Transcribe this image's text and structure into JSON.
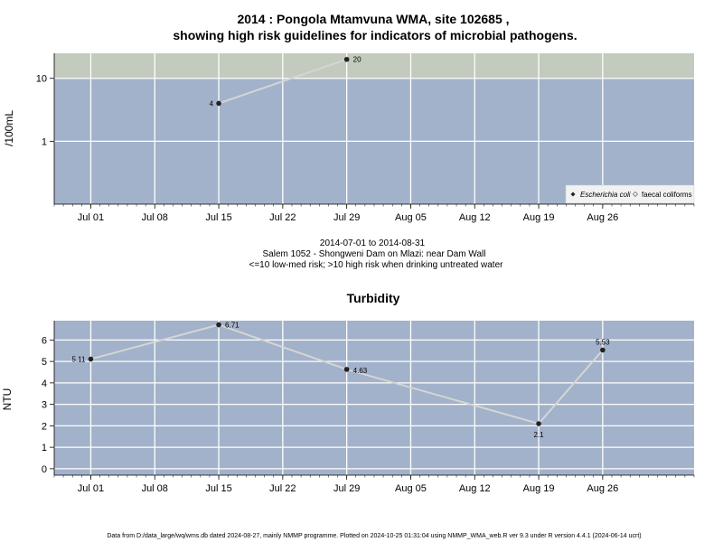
{
  "chart_data": [
    {
      "type": "line",
      "title": "2014 : Pongola Mtamvuna WMA, site 102685 ,",
      "subtitle": "showing high risk guidelines for indicators of microbial pathogens.",
      "ylabel": "/100mL",
      "yscale": "log",
      "ylim": [
        0.1,
        25
      ],
      "yticks": [
        1,
        10
      ],
      "ytick_labels": [
        "1",
        "10"
      ],
      "xlim": [
        "2014-06-27",
        "2014-09-05"
      ],
      "xticks": [
        "2014-07-01",
        "2014-07-08",
        "2014-07-15",
        "2014-07-22",
        "2014-07-29",
        "2014-08-05",
        "2014-08-12",
        "2014-08-19",
        "2014-08-26"
      ],
      "xtick_labels": [
        "Jul 01",
        "Jul 08",
        "Jul 15",
        "Jul 22",
        "Jul 29",
        "Aug 05",
        "Aug 12",
        "Aug 19",
        "Aug 26"
      ],
      "high_risk_threshold": 10,
      "grid": true,
      "series": [
        {
          "name": "Escherichia coli",
          "x": [
            "2014-07-15",
            "2014-07-29"
          ],
          "values": [
            4,
            20
          ],
          "labels": [
            "4",
            "20"
          ]
        }
      ],
      "legend": {
        "placement": "bottom-right",
        "entries": [
          "Escherichia coli",
          "faecal coliforms"
        ]
      },
      "colors": {
        "background": "#a2b2ca",
        "high_risk_band": "#c2cbbd",
        "line": "#d5d5d5",
        "marker": "#222222",
        "grid": "#ffffff"
      }
    },
    {
      "type": "line",
      "title": "Turbidity",
      "ylabel": "NTU",
      "ylim": [
        -0.3,
        6.9
      ],
      "yticks": [
        0,
        1,
        2,
        3,
        4,
        5,
        6
      ],
      "ytick_labels": [
        "0",
        "1",
        "2",
        "3",
        "4",
        "5",
        "6"
      ],
      "xlim": [
        "2014-06-27",
        "2014-09-05"
      ],
      "xticks": [
        "2014-07-01",
        "2014-07-08",
        "2014-07-15",
        "2014-07-22",
        "2014-07-29",
        "2014-08-05",
        "2014-08-12",
        "2014-08-19",
        "2014-08-26"
      ],
      "xtick_labels": [
        "Jul 01",
        "Jul 08",
        "Jul 15",
        "Jul 22",
        "Jul 29",
        "Aug 05",
        "Aug 12",
        "Aug 19",
        "Aug 26"
      ],
      "grid": true,
      "series": [
        {
          "x": [
            "2014-07-01",
            "2014-07-15",
            "2014-07-29",
            "2014-08-19",
            "2014-08-26"
          ],
          "values": [
            5.11,
            6.71,
            4.63,
            2.1,
            5.53
          ],
          "labels": [
            "5.11",
            "6.71",
            "4.63",
            "2.1",
            "5.53"
          ]
        }
      ],
      "colors": {
        "background": "#a2b2ca",
        "line": "#d5d5d5",
        "marker": "#222222",
        "grid": "#ffffff"
      }
    }
  ],
  "caption": {
    "date_range": "2014-07-01 to 2014-08-31",
    "site": "Salem 1052 - Shongweni Dam on Mlazi: near Dam Wall",
    "guideline": "<=10 low-med risk; >10 high risk when drinking untreated water"
  },
  "footer": "Data from D:/data_large/wq/wms.db dated 2024-08-27, mainly NMMP programme. Plotted on 2024-10-25 01:31:04 using NMMP_WMA_web.R ver 9.3 under R version 4.4.1 (2024-06-14 ucrt)"
}
